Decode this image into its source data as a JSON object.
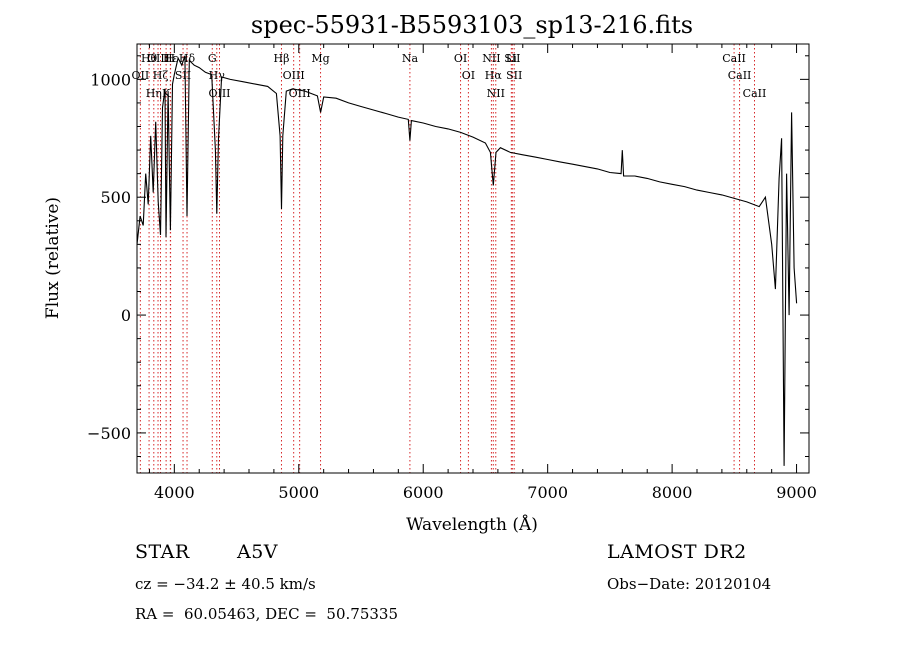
{
  "chart_data": {
    "type": "line",
    "title": "spec-55931-B5593103_sp13-216.fits",
    "xlabel": "Wavelength (Å)",
    "ylabel": "Flux (relative)",
    "xlim": [
      3700,
      9100
    ],
    "ylim": [
      -670,
      1150
    ],
    "x_ticks": [
      4000,
      5000,
      6000,
      7000,
      8000,
      9000
    ],
    "y_ticks": [
      -500,
      0,
      500,
      1000
    ],
    "grid": false,
    "legend": "none",
    "series": [
      {
        "points": [
          [
            3700,
            300
          ],
          [
            3725,
            420
          ],
          [
            3750,
            380
          ],
          [
            3770,
            600
          ],
          [
            3790,
            470
          ],
          [
            3810,
            760
          ],
          [
            3830,
            520
          ],
          [
            3850,
            820
          ],
          [
            3870,
            480
          ],
          [
            3889,
            340
          ],
          [
            3905,
            880
          ],
          [
            3925,
            960
          ],
          [
            3933,
            330
          ],
          [
            3950,
            950
          ],
          [
            3968,
            360
          ],
          [
            3985,
            980
          ],
          [
            4000,
            1020
          ],
          [
            4030,
            1090
          ],
          [
            4060,
            1060
          ],
          [
            4085,
            1100
          ],
          [
            4102,
            420
          ],
          [
            4120,
            1080
          ],
          [
            4160,
            1060
          ],
          [
            4200,
            1050
          ],
          [
            4250,
            1030
          ],
          [
            4300,
            1020
          ],
          [
            4330,
            700
          ],
          [
            4341,
            430
          ],
          [
            4355,
            750
          ],
          [
            4380,
            1010
          ],
          [
            4450,
            1000
          ],
          [
            4550,
            990
          ],
          [
            4650,
            980
          ],
          [
            4750,
            970
          ],
          [
            4820,
            940
          ],
          [
            4850,
            760
          ],
          [
            4861,
            450
          ],
          [
            4872,
            760
          ],
          [
            4900,
            950
          ],
          [
            4950,
            960
          ],
          [
            5000,
            955
          ],
          [
            5050,
            950
          ],
          [
            5100,
            940
          ],
          [
            5150,
            930
          ],
          [
            5175,
            860
          ],
          [
            5200,
            925
          ],
          [
            5300,
            920
          ],
          [
            5400,
            900
          ],
          [
            5500,
            885
          ],
          [
            5600,
            870
          ],
          [
            5700,
            855
          ],
          [
            5800,
            840
          ],
          [
            5880,
            830
          ],
          [
            5893,
            740
          ],
          [
            5905,
            825
          ],
          [
            6000,
            815
          ],
          [
            6100,
            800
          ],
          [
            6200,
            790
          ],
          [
            6300,
            775
          ],
          [
            6400,
            755
          ],
          [
            6500,
            730
          ],
          [
            6540,
            690
          ],
          [
            6563,
            550
          ],
          [
            6585,
            690
          ],
          [
            6620,
            710
          ],
          [
            6700,
            690
          ],
          [
            6800,
            680
          ],
          [
            6900,
            670
          ],
          [
            7000,
            660
          ],
          [
            7100,
            650
          ],
          [
            7200,
            640
          ],
          [
            7300,
            630
          ],
          [
            7400,
            620
          ],
          [
            7500,
            605
          ],
          [
            7590,
            600
          ],
          [
            7600,
            700
          ],
          [
            7610,
            590
          ],
          [
            7700,
            590
          ],
          [
            7800,
            580
          ],
          [
            7900,
            565
          ],
          [
            8000,
            555
          ],
          [
            8100,
            545
          ],
          [
            8200,
            530
          ],
          [
            8300,
            520
          ],
          [
            8400,
            510
          ],
          [
            8500,
            495
          ],
          [
            8600,
            480
          ],
          [
            8700,
            460
          ],
          [
            8750,
            500
          ],
          [
            8800,
            300
          ],
          [
            8830,
            110
          ],
          [
            8860,
            580
          ],
          [
            8880,
            750
          ],
          [
            8900,
            -640
          ],
          [
            8920,
            600
          ],
          [
            8940,
            0
          ],
          [
            8960,
            860
          ],
          [
            8980,
            200
          ],
          [
            9000,
            50
          ]
        ]
      }
    ],
    "lines": [
      {
        "label": "Hθ",
        "x": 3797
      },
      {
        "label": "OII",
        "x": 3727
      },
      {
        "label": "Hη",
        "x": 3835
      },
      {
        "label": "OIII",
        "x": 3869
      },
      {
        "label": "Hζ",
        "x": 3889
      },
      {
        "label": "K",
        "x": 3934
      },
      {
        "label": "Hε",
        "x": 3970
      },
      {
        "label": "H",
        "x": 3968
      },
      {
        "label": "SII",
        "x": 4070
      },
      {
        "label": "Hδ",
        "x": 4102
      },
      {
        "label": "G",
        "x": 4305
      },
      {
        "label": "Hγ",
        "x": 4341
      },
      {
        "label": "OIII",
        "x": 4363
      },
      {
        "label": "Hβ",
        "x": 4861
      },
      {
        "label": "OIII",
        "x": 4959
      },
      {
        "label": "OIII",
        "x": 5007
      },
      {
        "label": "Mg",
        "x": 5175
      },
      {
        "label": "Na",
        "x": 5893
      },
      {
        "label": "OI",
        "x": 6300
      },
      {
        "label": "OI",
        "x": 6363
      },
      {
        "label": "NII",
        "x": 6548
      },
      {
        "label": "Hα",
        "x": 6563
      },
      {
        "label": "NII",
        "x": 6583
      },
      {
        "label": "SII",
        "x": 6716
      },
      {
        "label": "SII",
        "x": 6731
      },
      {
        "label": "Li",
        "x": 6708
      },
      {
        "label": "CaII",
        "x": 8498
      },
      {
        "label": "CaII",
        "x": 8542
      },
      {
        "label": "CaII",
        "x": 8662
      }
    ]
  },
  "info": {
    "object_class": "STAR",
    "subclass": "A5V",
    "survey": "LAMOST DR2",
    "cz": "cz = −34.2 ± 40.5 km/s",
    "obs_date": "Obs−Date: 20120104",
    "coords": "RA =  60.05463, DEC =  50.75335"
  },
  "colors": {
    "spectrum": "#000000",
    "line_markers": "#d62728",
    "frame": "#000000"
  }
}
